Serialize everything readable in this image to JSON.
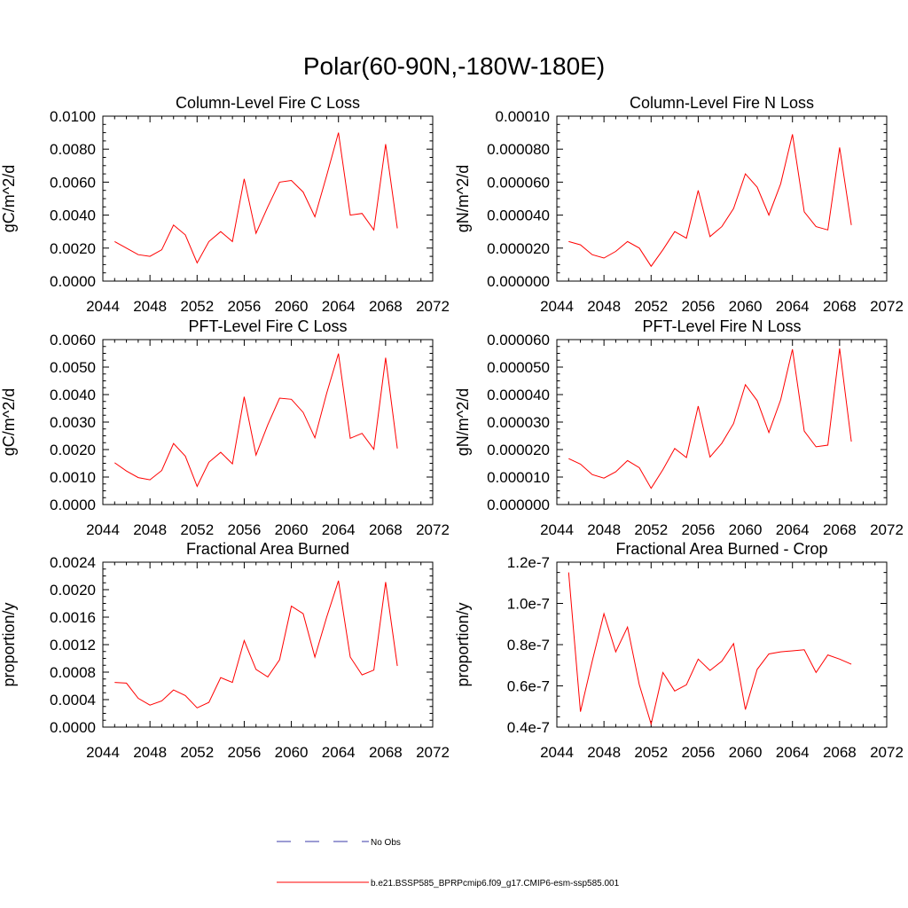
{
  "figure": {
    "title": "Polar(60-90N,-180W-180E)"
  },
  "legend": {
    "entries": [
      {
        "label": "No Obs",
        "color": "#3a3aa8",
        "style": "dashed"
      },
      {
        "label": "b.e21.BSSP585_BPRPcmip6.f09_g17.CMIP6-esm-ssp585.001",
        "color": "#ff0000",
        "style": "solid"
      }
    ]
  },
  "chart_data": [
    {
      "type": "line",
      "title": "Column-Level Fire C Loss",
      "ylabel": "gC/m^2/d",
      "xlim": [
        2044,
        2072
      ],
      "xticks": [
        2044,
        2048,
        2052,
        2056,
        2060,
        2064,
        2068,
        2072
      ],
      "ylim": [
        0,
        0.01
      ],
      "yticks": [
        0,
        0.002,
        0.004,
        0.006,
        0.008,
        0.01
      ],
      "yticklabels": [
        "0.0000",
        "0.0020",
        "0.0040",
        "0.0060",
        "0.0080",
        "0.0100"
      ],
      "series": [
        {
          "color": "#ff0000",
          "x": [
            2045,
            2046,
            2047,
            2048,
            2049,
            2050,
            2051,
            2052,
            2053,
            2054,
            2055,
            2056,
            2057,
            2058,
            2059,
            2060,
            2061,
            2062,
            2063,
            2064,
            2065,
            2066,
            2067,
            2068,
            2069
          ],
          "values": [
            0.0024,
            0.002,
            0.0016,
            0.0015,
            0.0019,
            0.0034,
            0.0028,
            0.0011,
            0.0024,
            0.003,
            0.0024,
            0.0062,
            0.0029,
            0.0045,
            0.006,
            0.0061,
            0.0054,
            0.0039,
            0.0064,
            0.009,
            0.004,
            0.0041,
            0.0031,
            0.0083,
            0.0032
          ]
        }
      ]
    },
    {
      "type": "line",
      "title": "Column-Level Fire N Loss",
      "ylabel": "gN/m^2/d",
      "xlim": [
        2044,
        2072
      ],
      "xticks": [
        2044,
        2048,
        2052,
        2056,
        2060,
        2064,
        2068,
        2072
      ],
      "ylim": [
        0,
        0.0001
      ],
      "yticks": [
        0,
        2e-05,
        4e-05,
        6e-05,
        8e-05,
        0.0001
      ],
      "yticklabels": [
        "0.000000",
        "0.000020",
        "0.000040",
        "0.000060",
        "0.000080",
        "0.00010"
      ],
      "series": [
        {
          "color": "#ff0000",
          "x": [
            2045,
            2046,
            2047,
            2048,
            2049,
            2050,
            2051,
            2052,
            2053,
            2054,
            2055,
            2056,
            2057,
            2058,
            2059,
            2060,
            2061,
            2062,
            2063,
            2064,
            2065,
            2066,
            2067,
            2068,
            2069
          ],
          "values": [
            2.4e-05,
            2.2e-05,
            1.6e-05,
            1.4e-05,
            1.8e-05,
            2.4e-05,
            2e-05,
            9e-06,
            1.9e-05,
            3e-05,
            2.6e-05,
            5.5e-05,
            2.7e-05,
            3.3e-05,
            4.4e-05,
            6.5e-05,
            5.7e-05,
            4e-05,
            5.9e-05,
            8.9e-05,
            4.2e-05,
            3.3e-05,
            3.1e-05,
            8.1e-05,
            3.4e-05
          ]
        }
      ]
    },
    {
      "type": "line",
      "title": "PFT-Level Fire C Loss",
      "ylabel": "gC/m^2/d",
      "xlim": [
        2044,
        2072
      ],
      "xticks": [
        2044,
        2048,
        2052,
        2056,
        2060,
        2064,
        2068,
        2072
      ],
      "ylim": [
        0,
        0.006
      ],
      "yticks": [
        0,
        0.001,
        0.002,
        0.003,
        0.004,
        0.005,
        0.006
      ],
      "yticklabels": [
        "0.0000",
        "0.0010",
        "0.0020",
        "0.0030",
        "0.0040",
        "0.0050",
        "0.0060"
      ],
      "series": [
        {
          "color": "#ff0000",
          "x": [
            2045,
            2046,
            2047,
            2048,
            2049,
            2050,
            2051,
            2052,
            2053,
            2054,
            2055,
            2056,
            2057,
            2058,
            2059,
            2060,
            2061,
            2062,
            2063,
            2064,
            2065,
            2066,
            2067,
            2068,
            2069
          ],
          "values": [
            0.00152,
            0.00122,
            0.00098,
            0.0009,
            0.00124,
            0.00222,
            0.00176,
            0.00066,
            0.00154,
            0.0019,
            0.00148,
            0.00392,
            0.0018,
            0.0029,
            0.00387,
            0.00383,
            0.00335,
            0.00243,
            0.00405,
            0.00549,
            0.00241,
            0.00259,
            0.00201,
            0.00534,
            0.00204
          ]
        }
      ]
    },
    {
      "type": "line",
      "title": "PFT-Level Fire N Loss",
      "ylabel": "gN/m^2/d",
      "xlim": [
        2044,
        2072
      ],
      "xticks": [
        2044,
        2048,
        2052,
        2056,
        2060,
        2064,
        2068,
        2072
      ],
      "ylim": [
        0,
        6e-05
      ],
      "yticks": [
        0,
        1e-05,
        2e-05,
        3e-05,
        4e-05,
        5e-05,
        6e-05
      ],
      "yticklabels": [
        "0.000000",
        "0.000010",
        "0.000020",
        "0.000030",
        "0.000040",
        "0.000050",
        "0.000060"
      ],
      "series": [
        {
          "color": "#ff0000",
          "x": [
            2045,
            2046,
            2047,
            2048,
            2049,
            2050,
            2051,
            2052,
            2053,
            2054,
            2055,
            2056,
            2057,
            2058,
            2059,
            2060,
            2061,
            2062,
            2063,
            2064,
            2065,
            2066,
            2067,
            2068,
            2069
          ],
          "values": [
            1.67e-05,
            1.47e-05,
            1.09e-05,
            9.6e-06,
            1.19e-05,
            1.6e-05,
            1.34e-05,
            5.9e-06,
            1.27e-05,
            2.04e-05,
            1.71e-05,
            3.58e-05,
            1.73e-05,
            2.23e-05,
            2.95e-05,
            4.36e-05,
            3.78e-05,
            2.62e-05,
            3.81e-05,
            5.65e-05,
            2.67e-05,
            2.1e-05,
            2.16e-05,
            5.68e-05,
            2.29e-05
          ]
        }
      ]
    },
    {
      "type": "line",
      "title": "Fractional Area Burned",
      "ylabel": "proportion/y",
      "xlim": [
        2044,
        2072
      ],
      "xticks": [
        2044,
        2048,
        2052,
        2056,
        2060,
        2064,
        2068,
        2072
      ],
      "ylim": [
        0,
        0.0024
      ],
      "yticks": [
        0,
        0.0004,
        0.0008,
        0.0012,
        0.0016,
        0.002,
        0.0024
      ],
      "yticklabels": [
        "0.0000",
        "0.0004",
        "0.0008",
        "0.0012",
        "0.0016",
        "0.0020",
        "0.0024"
      ],
      "series": [
        {
          "color": "#ff0000",
          "x": [
            2045,
            2046,
            2047,
            2048,
            2049,
            2050,
            2051,
            2052,
            2053,
            2054,
            2055,
            2056,
            2057,
            2058,
            2059,
            2060,
            2061,
            2062,
            2063,
            2064,
            2065,
            2066,
            2067,
            2068,
            2069
          ],
          "values": [
            0.00065,
            0.00064,
            0.00042,
            0.00032,
            0.00038,
            0.00054,
            0.00046,
            0.00028,
            0.00036,
            0.00072,
            0.00065,
            0.00126,
            0.00084,
            0.00073,
            0.00098,
            0.00176,
            0.00165,
            0.00102,
            0.0016,
            0.00213,
            0.00102,
            0.00076,
            0.00083,
            0.00211,
            0.00089
          ]
        }
      ]
    },
    {
      "type": "line",
      "title": "Fractional Area Burned - Crop",
      "ylabel": "proportion/y",
      "xlim": [
        2044,
        2072
      ],
      "xticks": [
        2044,
        2048,
        2052,
        2056,
        2060,
        2064,
        2068,
        2072
      ],
      "ylim": [
        4e-08,
        1.2e-07
      ],
      "yticks": [
        4e-08,
        6e-08,
        8e-08,
        1e-07,
        1.2e-07
      ],
      "yticklabels": [
        "0.4e-7",
        "0.6e-7",
        "0.8e-7",
        "1.0e-7",
        "1.2e-7"
      ],
      "series": [
        {
          "color": "#ff0000",
          "x": [
            2045,
            2046,
            2047,
            2048,
            2049,
            2050,
            2051,
            2052,
            2053,
            2054,
            2055,
            2056,
            2057,
            2058,
            2059,
            2060,
            2061,
            2062,
            2063,
            2064,
            2065,
            2066,
            2067,
            2068,
            2069
          ],
          "values": [
            1.15e-07,
            4.75e-08,
            7.2e-08,
            9.5e-08,
            7.65e-08,
            8.85e-08,
            6.05e-08,
            4.15e-08,
            6.65e-08,
            5.75e-08,
            6.05e-08,
            7.3e-08,
            6.75e-08,
            7.2e-08,
            8.05e-08,
            4.85e-08,
            6.8e-08,
            7.55e-08,
            7.65e-08,
            7.7e-08,
            7.75e-08,
            6.65e-08,
            7.5e-08,
            7.3e-08,
            7.05e-08
          ]
        }
      ]
    }
  ]
}
